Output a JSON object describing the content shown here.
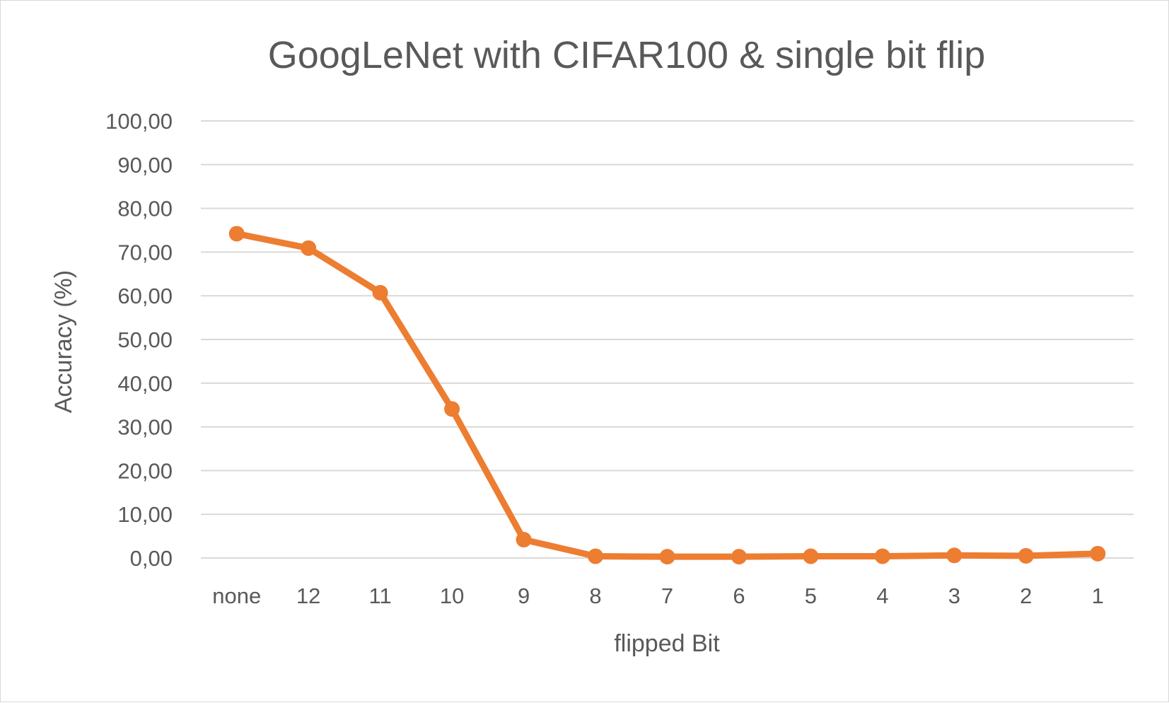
{
  "chart_data": {
    "type": "line",
    "title": "GoogLeNet with CIFAR100 & single bit flip",
    "xlabel": "flipped Bit",
    "ylabel": "Accuracy (%)",
    "categories": [
      "none",
      "12",
      "11",
      "10",
      "9",
      "8",
      "7",
      "6",
      "5",
      "4",
      "3",
      "2",
      "1"
    ],
    "series": [
      {
        "values": [
          74.2,
          70.9,
          60.7,
          34.1,
          4.2,
          0.4,
          0.3,
          0.3,
          0.4,
          0.4,
          0.6,
          0.5,
          1.0
        ]
      }
    ],
    "ylim": [
      0,
      100
    ],
    "yticks": [
      "0,00",
      "10,00",
      "20,00",
      "30,00",
      "40,00",
      "50,00",
      "60,00",
      "70,00",
      "80,00",
      "90,00",
      "100,00"
    ],
    "grid": true,
    "legend": "none",
    "colors": {
      "series": "#ed7d31",
      "grid": "#d9d9d9",
      "text": "#595959"
    }
  }
}
